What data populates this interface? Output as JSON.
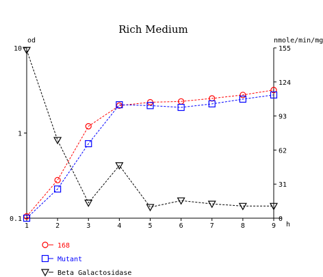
{
  "chart_data": {
    "type": "line",
    "title": "Rich Medium",
    "left_axis_label": "od",
    "right_axis_label": "nmole/min/mg",
    "x_unit_label": "h",
    "x": [
      1,
      2,
      3,
      4,
      5,
      6,
      7,
      8,
      9
    ],
    "x_ticks": [
      "1",
      "2",
      "3",
      "4",
      "5",
      "6",
      "7",
      "8",
      "9"
    ],
    "left_ticks": [
      "10",
      "1",
      "0.1"
    ],
    "right_ticks": [
      "155",
      "124",
      "93",
      "62",
      "31",
      "0"
    ],
    "left_scale": "log",
    "left_ylim": [
      0.1,
      10
    ],
    "right_ylim": [
      0,
      155
    ],
    "grid": false,
    "legend_position": "bottom-left",
    "series": [
      {
        "name": "168",
        "axis": "left",
        "color": "#ff0000",
        "marker": "circle",
        "values": [
          0.105,
          0.28,
          1.2,
          2.1,
          2.3,
          2.35,
          2.55,
          2.8,
          3.2
        ]
      },
      {
        "name": "Mutant",
        "axis": "left",
        "color": "#0000ff",
        "marker": "square",
        "values": [
          0.1,
          0.22,
          0.75,
          2.15,
          2.1,
          2.0,
          2.2,
          2.5,
          2.8
        ]
      },
      {
        "name": "Beta Galactosidase",
        "axis": "right",
        "color": "#000000",
        "marker": "triangle-down",
        "values": [
          153,
          71,
          14,
          48,
          10,
          16,
          13,
          11,
          11
        ]
      }
    ]
  }
}
